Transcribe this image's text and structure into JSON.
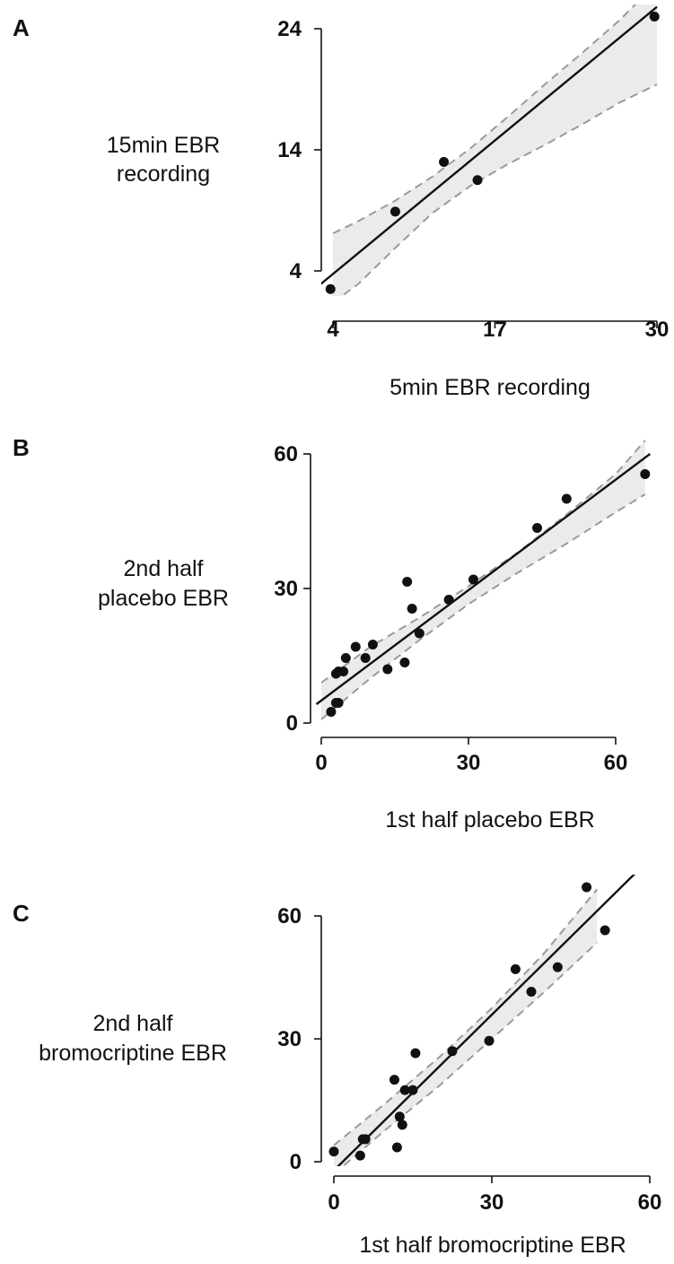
{
  "chart_data": [
    {
      "type": "scatter",
      "panel": "A",
      "xlabel": "5min EBR recording",
      "ylabel": [
        "15min EBR",
        "recording"
      ],
      "xticks": [
        4,
        17,
        30
      ],
      "yticks": [
        4,
        14,
        24
      ],
      "xlim": [
        4,
        30
      ],
      "ylim": [
        4,
        24
      ],
      "points": [
        {
          "x": 3.8,
          "y": 2.5
        },
        {
          "x": 9.0,
          "y": 8.9
        },
        {
          "x": 12.9,
          "y": 13.0
        },
        {
          "x": 15.6,
          "y": 11.5
        },
        {
          "x": 29.8,
          "y": 25.0
        }
      ],
      "fit": {
        "x": [
          3.0,
          30.0
        ],
        "y": [
          2.9,
          25.8
        ]
      },
      "ci": {
        "x": [
          4,
          6,
          9,
          12,
          15,
          18,
          21,
          24,
          27,
          30
        ],
        "upper": [
          7.1,
          8.1,
          9.8,
          11.8,
          14.1,
          16.7,
          19.4,
          22.0,
          24.7,
          27.8
        ],
        "lower": [
          1.4,
          2.9,
          5.9,
          8.8,
          11.0,
          12.8,
          14.4,
          16.1,
          17.9,
          19.4
        ]
      }
    },
    {
      "type": "scatter",
      "panel": "B",
      "xlabel": "1st half placebo EBR",
      "ylabel": [
        "2nd half",
        "placebo EBR"
      ],
      "xticks": [
        0,
        30,
        60
      ],
      "yticks": [
        0,
        30,
        60
      ],
      "xlim": [
        0,
        60
      ],
      "ylim": [
        0,
        60
      ],
      "points": [
        {
          "x": 2,
          "y": 2.5
        },
        {
          "x": 3,
          "y": 4.5
        },
        {
          "x": 3.5,
          "y": 4.5
        },
        {
          "x": 3,
          "y": 11
        },
        {
          "x": 3.5,
          "y": 11.5
        },
        {
          "x": 4.5,
          "y": 11.5
        },
        {
          "x": 5,
          "y": 14.5
        },
        {
          "x": 7,
          "y": 17
        },
        {
          "x": 9,
          "y": 14.5
        },
        {
          "x": 10.5,
          "y": 17.5
        },
        {
          "x": 13.5,
          "y": 12
        },
        {
          "x": 17,
          "y": 13.5
        },
        {
          "x": 17.5,
          "y": 31.5
        },
        {
          "x": 18.5,
          "y": 25.5
        },
        {
          "x": 20,
          "y": 20
        },
        {
          "x": 26,
          "y": 27.5
        },
        {
          "x": 31,
          "y": 32
        },
        {
          "x": 44,
          "y": 43.5
        },
        {
          "x": 50,
          "y": 50
        },
        {
          "x": 66,
          "y": 55.5
        }
      ],
      "fit": {
        "x": [
          -1,
          67
        ],
        "y": [
          4.2,
          60
        ]
      },
      "ci": {
        "x": [
          0,
          10,
          20,
          30,
          40,
          50,
          60,
          66
        ],
        "upper": [
          9.0,
          17.0,
          23.5,
          30.5,
          38.0,
          46.5,
          55.5,
          63.0
        ],
        "lower": [
          0.8,
          10.0,
          18.5,
          26.5,
          33.5,
          40.0,
          47.0,
          51.0
        ]
      }
    },
    {
      "type": "scatter",
      "panel": "C",
      "xlabel": "1st half bromocriptine EBR",
      "ylabel": [
        "2nd half",
        "bromocriptine EBR"
      ],
      "xticks": [
        0,
        30,
        60
      ],
      "yticks": [
        0,
        30,
        60
      ],
      "xlim": [
        0,
        60
      ],
      "ylim": [
        0,
        60
      ],
      "points": [
        {
          "x": 0,
          "y": 2.5
        },
        {
          "x": 5,
          "y": 1.5
        },
        {
          "x": 5.5,
          "y": 5.5
        },
        {
          "x": 6,
          "y": 5.5
        },
        {
          "x": 11.5,
          "y": 20
        },
        {
          "x": 12,
          "y": 3.5
        },
        {
          "x": 12.5,
          "y": 11
        },
        {
          "x": 13,
          "y": 9
        },
        {
          "x": 13.5,
          "y": 17.5
        },
        {
          "x": 15,
          "y": 17.5
        },
        {
          "x": 15.5,
          "y": 26.5
        },
        {
          "x": 22.5,
          "y": 27
        },
        {
          "x": 29.5,
          "y": 29.5
        },
        {
          "x": 34.5,
          "y": 47
        },
        {
          "x": 37.5,
          "y": 41.5
        },
        {
          "x": 42.5,
          "y": 47.5
        },
        {
          "x": 48,
          "y": 67
        },
        {
          "x": 51.5,
          "y": 56.5
        }
      ],
      "fit": {
        "x": [
          0.5,
          58.5
        ],
        "y": [
          -1.5,
          72.0
        ]
      },
      "ci": {
        "x": [
          0,
          10,
          20,
          30,
          40,
          50
        ],
        "upper": [
          4.0,
          14.5,
          25.5,
          37.5,
          51.0,
          66.5
        ],
        "lower": [
          -3.0,
          8.0,
          18.5,
          30.0,
          41.5,
          53.5
        ]
      }
    }
  ]
}
